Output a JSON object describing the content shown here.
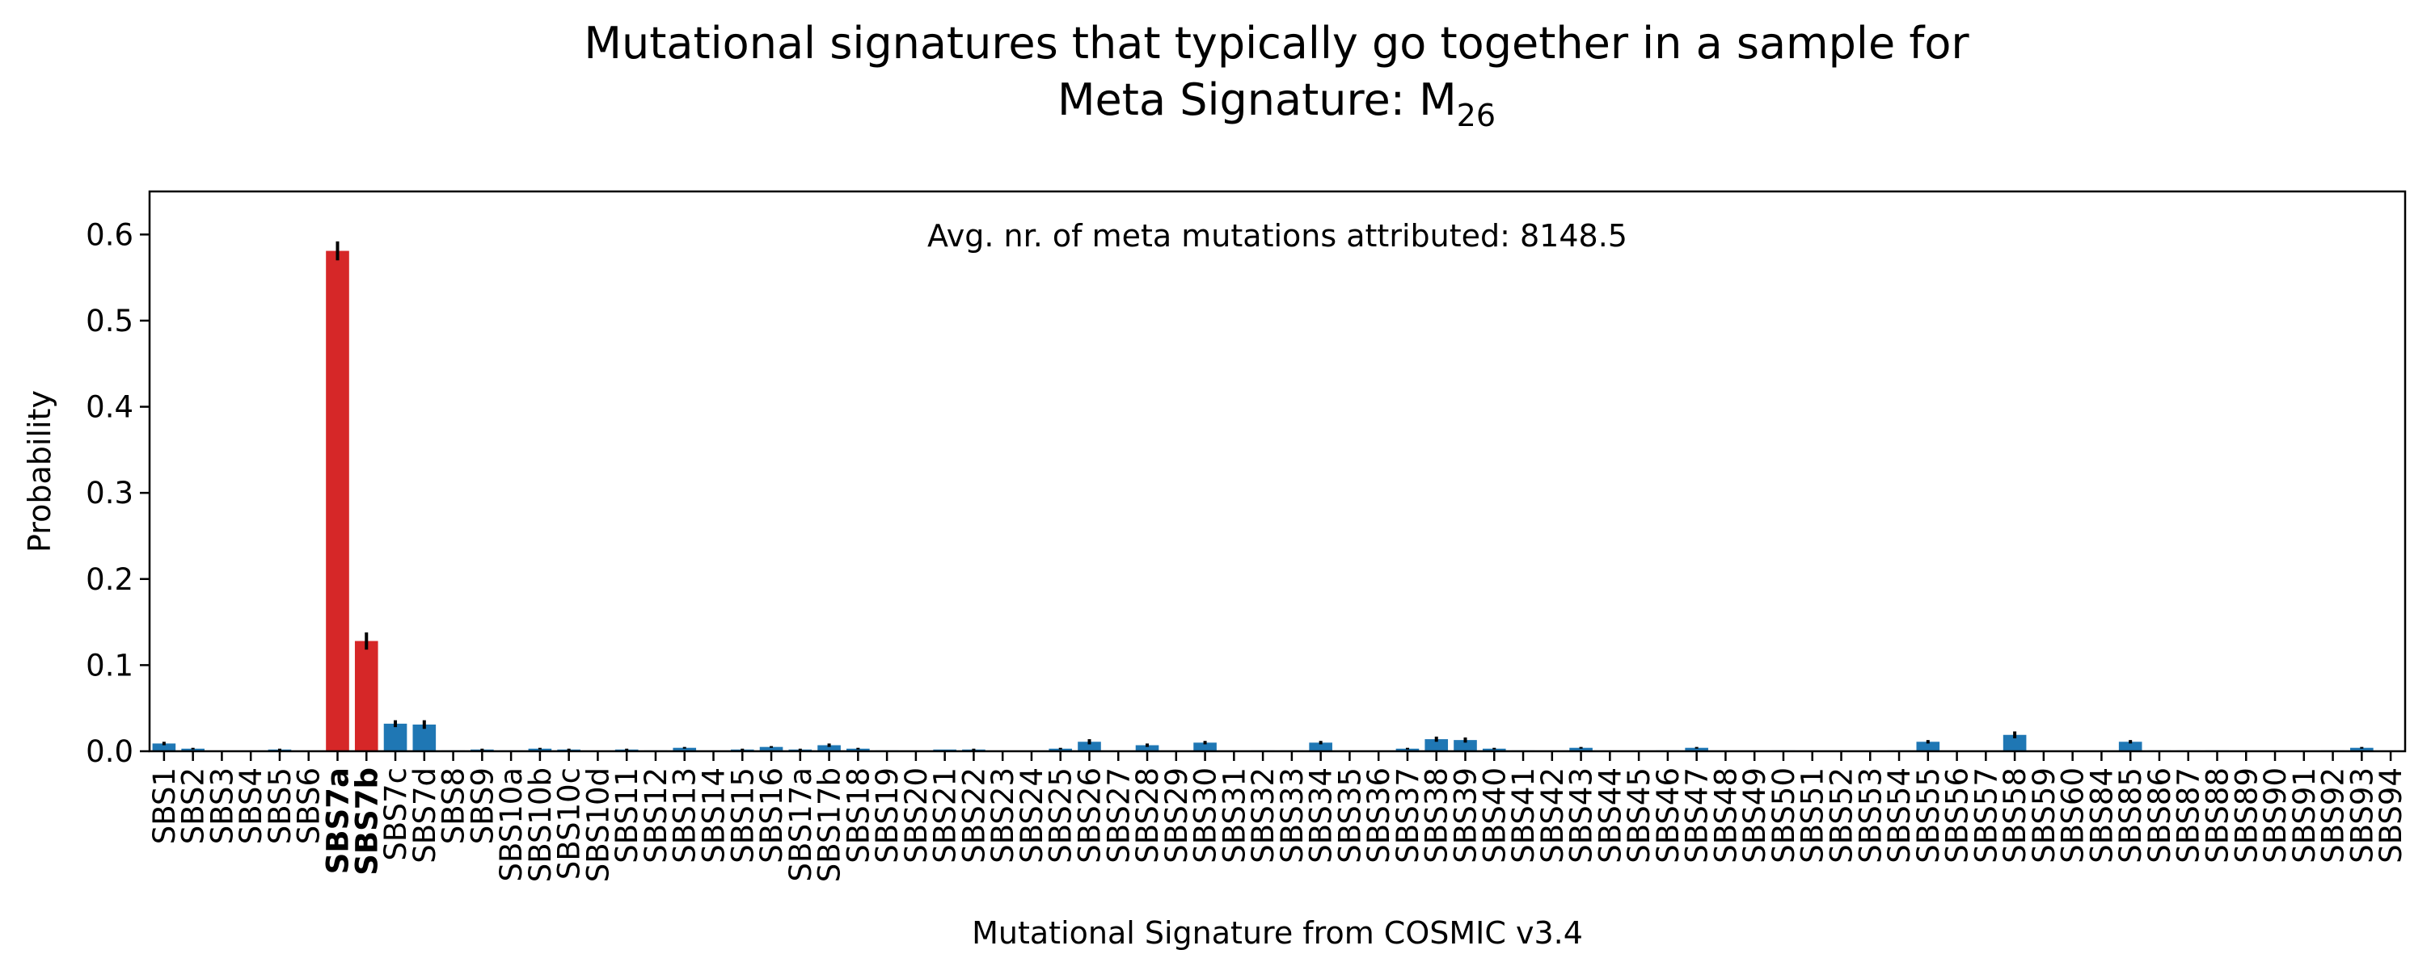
{
  "chart_data": {
    "type": "bar",
    "title_line1": "Mutational signatures that typically go together in a sample for",
    "title_line2_prefix": "Meta Signature: M",
    "title_line2_subscript": "26",
    "annotation": "Avg. nr. of meta mutations attributed: 8148.5",
    "xlabel": "Mutational Signature from COSMIC v3.4",
    "ylabel": "Probability",
    "ylim": [
      0,
      0.65
    ],
    "yticks": [
      "0.0",
      "0.1",
      "0.2",
      "0.3",
      "0.4",
      "0.5",
      "0.6"
    ],
    "ytick_values": [
      0,
      0.1,
      0.2,
      0.3,
      0.4,
      0.5,
      0.6
    ],
    "colors": {
      "default": "#1f77b4",
      "highlight": "#d62728",
      "error": "#000000"
    },
    "categories": [
      "SBS1",
      "SBS2",
      "SBS3",
      "SBS4",
      "SBS5",
      "SBS6",
      "SBS7a",
      "SBS7b",
      "SBS7c",
      "SBS7d",
      "SBS8",
      "SBS9",
      "SBS10a",
      "SBS10b",
      "SBS10c",
      "SBS10d",
      "SBS11",
      "SBS12",
      "SBS13",
      "SBS14",
      "SBS15",
      "SBS16",
      "SBS17a",
      "SBS17b",
      "SBS18",
      "SBS19",
      "SBS20",
      "SBS21",
      "SBS22",
      "SBS23",
      "SBS24",
      "SBS25",
      "SBS26",
      "SBS27",
      "SBS28",
      "SBS29",
      "SBS30",
      "SBS31",
      "SBS32",
      "SBS33",
      "SBS34",
      "SBS35",
      "SBS36",
      "SBS37",
      "SBS38",
      "SBS39",
      "SBS40",
      "SBS41",
      "SBS42",
      "SBS43",
      "SBS44",
      "SBS45",
      "SBS46",
      "SBS47",
      "SBS48",
      "SBS49",
      "SBS50",
      "SBS51",
      "SBS52",
      "SBS53",
      "SBS54",
      "SBS55",
      "SBS56",
      "SBS57",
      "SBS58",
      "SBS59",
      "SBS60",
      "SBS84",
      "SBS85",
      "SBS86",
      "SBS87",
      "SBS88",
      "SBS89",
      "SBS90",
      "SBS91",
      "SBS92",
      "SBS93",
      "SBS94"
    ],
    "values": [
      0.009,
      0.003,
      0,
      0,
      0.002,
      0,
      0.581,
      0.128,
      0.032,
      0.031,
      0.001,
      0.002,
      0.001,
      0.003,
      0.002,
      0,
      0.002,
      0.001,
      0.004,
      0,
      0.002,
      0.005,
      0.002,
      0.007,
      0.003,
      0.001,
      0,
      0.002,
      0.002,
      0,
      0,
      0.003,
      0.011,
      0,
      0.007,
      0,
      0.01,
      0,
      0.001,
      0.001,
      0.01,
      0,
      0,
      0.003,
      0.014,
      0.013,
      0.003,
      0.001,
      0,
      0.004,
      0,
      0,
      0.001,
      0.004,
      0,
      0,
      0.001,
      0,
      0,
      0,
      0.001,
      0.011,
      0,
      0,
      0.019,
      0,
      0,
      0,
      0.011,
      0.001,
      0.001,
      0.001,
      0,
      0,
      0,
      0.001,
      0.004,
      0
    ],
    "errors": [
      0.002,
      0.001,
      0,
      0,
      0.001,
      0,
      0.011,
      0.01,
      0.004,
      0.005,
      0,
      0.001,
      0,
      0.001,
      0.001,
      0,
      0.001,
      0,
      0.001,
      0,
      0.001,
      0.001,
      0.001,
      0.002,
      0.001,
      0,
      0,
      0,
      0.001,
      0,
      0,
      0.001,
      0.003,
      0,
      0.002,
      0,
      0.002,
      0,
      0,
      0,
      0.002,
      0,
      0,
      0.001,
      0.003,
      0.003,
      0.001,
      0,
      0,
      0.001,
      0,
      0,
      0,
      0.001,
      0,
      0,
      0,
      0,
      0,
      0,
      0,
      0.002,
      0,
      0,
      0.004,
      0,
      0,
      0,
      0.002,
      0,
      0,
      0,
      0,
      0,
      0,
      0,
      0.001,
      0
    ],
    "highlighted": [
      "SBS7a",
      "SBS7b"
    ],
    "legend": "none",
    "grid": false
  }
}
